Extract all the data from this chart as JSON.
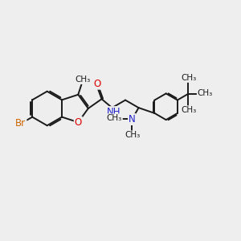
{
  "bg_color": "#eeeeee",
  "bond_color": "#1a1a1a",
  "bond_width": 1.4,
  "atom_colors": {
    "O": "#dd0000",
    "N": "#2222cc",
    "Br": "#cc6600",
    "C": "#1a1a1a"
  },
  "font_size": 8.5,
  "figsize": [
    3.0,
    3.0
  ],
  "dpi": 100,
  "xlim": [
    0,
    11
  ],
  "ylim": [
    0,
    10
  ]
}
